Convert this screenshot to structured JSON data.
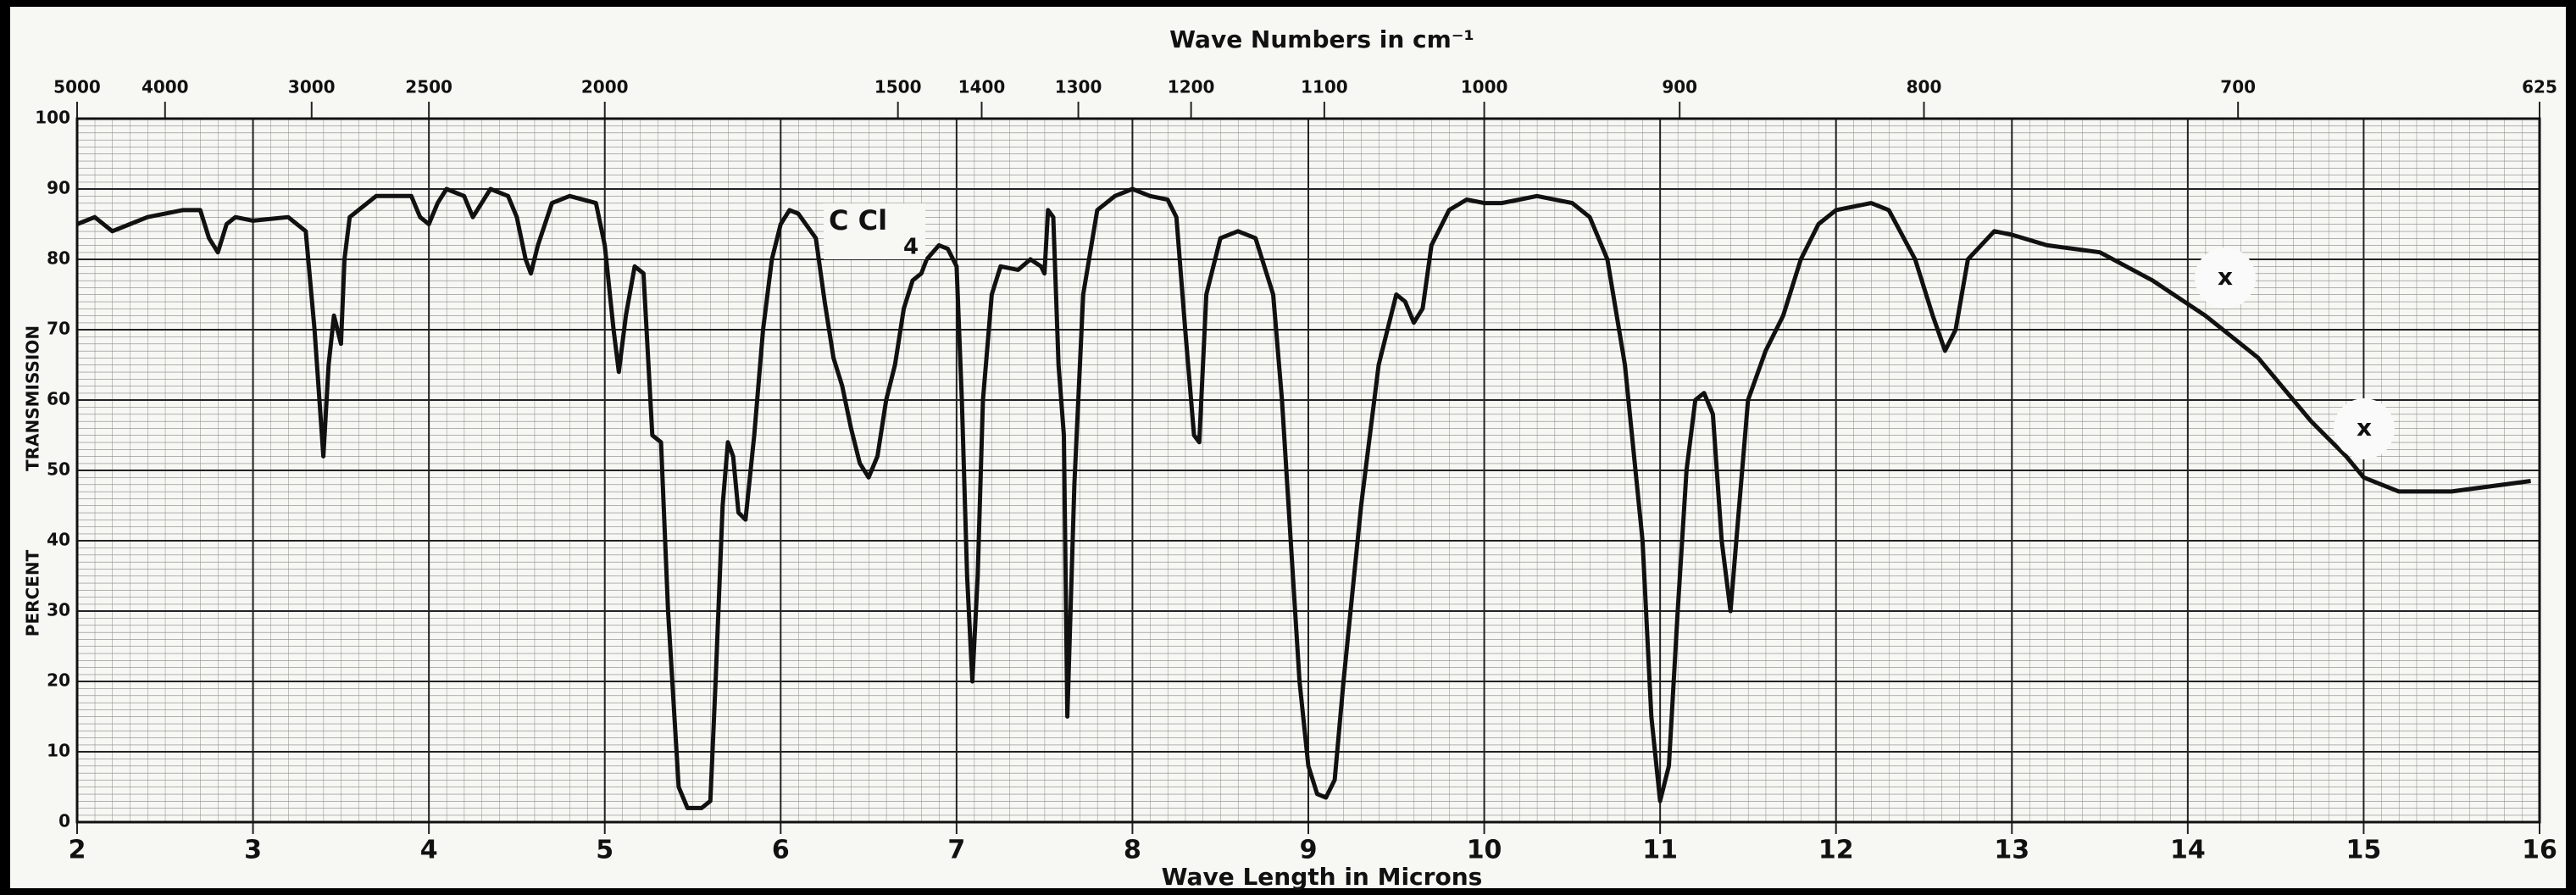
{
  "chart_data": {
    "type": "line",
    "title": "Wave Numbers in cm⁻¹",
    "xlabel": "Wave Length in Microns",
    "ylabel": [
      "PERCENT",
      "TRANSMISSION"
    ],
    "annotations": [
      "C Cl",
      "4",
      "x",
      "x"
    ],
    "xlim": [
      2,
      16
    ],
    "xticks": [
      2,
      3,
      4,
      5,
      6,
      7,
      8,
      9,
      10,
      11,
      12,
      13,
      14,
      15,
      16
    ],
    "ylim": [
      0,
      100
    ],
    "yticks": [
      0,
      10,
      20,
      30,
      40,
      50,
      60,
      70,
      80,
      90,
      100
    ],
    "x2scale": "reciprocal",
    "x2ticks": [
      5000,
      4000,
      3000,
      2500,
      2000,
      1500,
      1400,
      1300,
      1200,
      1100,
      1000,
      900,
      800,
      700,
      625
    ],
    "grid": true,
    "color": "#111111",
    "x": [
      2.0,
      2.1,
      2.2,
      2.3,
      2.4,
      2.6,
      2.7,
      2.75,
      2.8,
      2.85,
      2.9,
      3.0,
      3.2,
      3.3,
      3.35,
      3.4,
      3.43,
      3.46,
      3.5,
      3.52,
      3.55,
      3.65,
      3.7,
      3.9,
      3.95,
      4.0,
      4.05,
      4.1,
      4.2,
      4.25,
      4.3,
      4.35,
      4.45,
      4.5,
      4.55,
      4.58,
      4.62,
      4.7,
      4.8,
      4.95,
      5.0,
      5.05,
      5.08,
      5.12,
      5.17,
      5.22,
      5.27,
      5.32,
      5.36,
      5.42,
      5.47,
      5.55,
      5.6,
      5.63,
      5.67,
      5.7,
      5.73,
      5.76,
      5.8,
      5.85,
      5.9,
      5.95,
      6.0,
      6.05,
      6.1,
      6.2,
      6.25,
      6.3,
      6.35,
      6.4,
      6.45,
      6.5,
      6.55,
      6.6,
      6.65,
      6.7,
      6.75,
      6.8,
      6.83,
      6.9,
      6.95,
      7.0,
      7.03,
      7.06,
      7.09,
      7.12,
      7.15,
      7.2,
      7.25,
      7.35,
      7.42,
      7.48,
      7.5,
      7.52,
      7.55,
      7.58,
      7.61,
      7.63,
      7.67,
      7.72,
      7.8,
      7.9,
      8.0,
      8.1,
      8.2,
      8.25,
      8.3,
      8.35,
      8.38,
      8.42,
      8.5,
      8.6,
      8.7,
      8.8,
      8.85,
      8.9,
      8.95,
      9.0,
      9.05,
      9.1,
      9.15,
      9.2,
      9.3,
      9.4,
      9.5,
      9.55,
      9.6,
      9.65,
      9.7,
      9.8,
      9.9,
      10.0,
      10.1,
      10.2,
      10.3,
      10.5,
      10.6,
      10.7,
      10.8,
      10.9,
      10.95,
      11.0,
      11.05,
      11.1,
      11.15,
      11.2,
      11.25,
      11.3,
      11.35,
      11.4,
      11.45,
      11.5,
      11.6,
      11.7,
      11.8,
      11.9,
      12.0,
      12.2,
      12.3,
      12.45,
      12.55,
      12.62,
      12.68,
      12.75,
      12.9,
      13.0,
      13.2,
      13.5,
      13.8,
      14.1,
      14.4,
      14.7,
      14.9,
      15.0,
      15.2,
      15.5,
      15.8,
      15.95
    ],
    "values": [
      85,
      86,
      84,
      85,
      86,
      87,
      87,
      83,
      81,
      85,
      86,
      85.5,
      86,
      84,
      70,
      52,
      65,
      72,
      68,
      80,
      86,
      88,
      89,
      89,
      86,
      85,
      88,
      90,
      89,
      86,
      88,
      90,
      89,
      86,
      80,
      78,
      82,
      88,
      89,
      88,
      82,
      70,
      64,
      72,
      79,
      78,
      55,
      54,
      30,
      5,
      2,
      2,
      3,
      20,
      45,
      54,
      52,
      44,
      43,
      55,
      70,
      80,
      85,
      87,
      86.5,
      83,
      74,
      66,
      62,
      56,
      51,
      49,
      52,
      60,
      65,
      73,
      77,
      78,
      80,
      82,
      81.5,
      79,
      60,
      35,
      20,
      35,
      60,
      75,
      79,
      78.5,
      80,
      79,
      78,
      87,
      86,
      65,
      55,
      15,
      48,
      75,
      87,
      89,
      90,
      89,
      88.5,
      86,
      70,
      55,
      54,
      75,
      83,
      84,
      83,
      75,
      60,
      40,
      20,
      8,
      4,
      3.5,
      6,
      20,
      45,
      65,
      75,
      74,
      71,
      73,
      82,
      87,
      88.5,
      88,
      88,
      88.5,
      89,
      88,
      86,
      80,
      65,
      40,
      15,
      3,
      8,
      30,
      50,
      60,
      61,
      58,
      40,
      30,
      45,
      60,
      67,
      72,
      80,
      85,
      87,
      88,
      87,
      80,
      72,
      67,
      70,
      80,
      84,
      83.5,
      82,
      81,
      77,
      72,
      66,
      57,
      52,
      49,
      47,
      47,
      48,
      48.5
    ]
  }
}
